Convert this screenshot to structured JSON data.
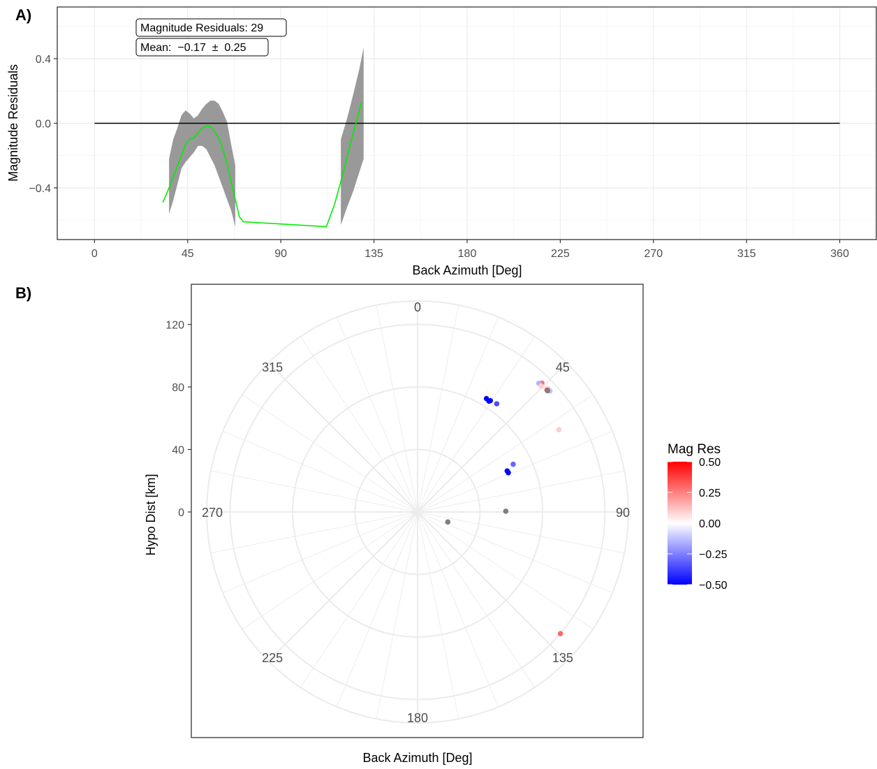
{
  "panel_a": {
    "tag": "A)",
    "annotation_count": "Magnitude Residuals: 29",
    "annotation_mean": "Mean:  −0.17  ±  0.25"
  },
  "panel_b": {
    "tag": "B)"
  },
  "colors": {
    "smooth_line": "#00ee00",
    "confidence_band": "#999999",
    "zero_line": "#000000",
    "grid_major": "#ebebeb",
    "grid_minor": "#f5f5f5",
    "na_point": "#7f7f7f",
    "scale_low": "#0000ff",
    "scale_mid": "#ffffff",
    "scale_high": "#ff0000"
  },
  "chart_data": [
    {
      "type": "line",
      "title": "",
      "xlabel": "Back Azimuth [Deg]",
      "ylabel": "Magnitude Residuals",
      "xlim": [
        -18,
        378
      ],
      "ylim": [
        -0.72,
        0.72
      ],
      "x_ticks": [
        0,
        45,
        90,
        135,
        180,
        225,
        270,
        315,
        360
      ],
      "x_tick_labels": [
        "0",
        "45",
        "90",
        "135",
        "180",
        "225",
        "270",
        "315",
        "360"
      ],
      "y_ticks": [
        -0.4,
        0.0,
        0.4
      ],
      "y_tick_labels": [
        "−0.4",
        "0.0",
        "0.4"
      ],
      "grid": true,
      "reference_line": {
        "y": 0,
        "x_from": 0,
        "x_to": 360
      },
      "series": [
        {
          "x": [
            33,
            36,
            39,
            42,
            44,
            46,
            48,
            50,
            52,
            54,
            56,
            58,
            60,
            62,
            64,
            66,
            68,
            70,
            72,
            112,
            116,
            119,
            122,
            125,
            129
          ],
          "y": [
            -0.49,
            -0.4,
            -0.3,
            -0.2,
            -0.13,
            -0.1,
            -0.09,
            -0.06,
            -0.03,
            -0.02,
            -0.02,
            -0.05,
            -0.09,
            -0.16,
            -0.25,
            -0.36,
            -0.47,
            -0.58,
            -0.61,
            -0.64,
            -0.5,
            -0.36,
            -0.21,
            -0.06,
            0.13
          ]
        }
      ],
      "bands": [
        {
          "x": [
            36,
            38,
            40,
            42,
            44,
            46,
            48,
            50,
            52,
            54,
            56,
            58,
            60,
            62,
            64,
            66,
            68
          ],
          "upper": [
            -0.22,
            -0.1,
            -0.03,
            0.05,
            0.08,
            0.06,
            0.03,
            0.05,
            0.09,
            0.12,
            0.14,
            0.14,
            0.12,
            0.07,
            0.01,
            -0.13,
            -0.26
          ],
          "lower": [
            -0.56,
            -0.48,
            -0.38,
            -0.28,
            -0.24,
            -0.21,
            -0.18,
            -0.14,
            -0.14,
            -0.16,
            -0.21,
            -0.26,
            -0.33,
            -0.4,
            -0.47,
            -0.54,
            -0.64
          ]
        },
        {
          "x": [
            119,
            122,
            125,
            128,
            130
          ],
          "upper": [
            -0.1,
            0.03,
            0.18,
            0.34,
            0.47
          ],
          "lower": [
            -0.63,
            -0.52,
            -0.42,
            -0.3,
            -0.22
          ]
        }
      ]
    },
    {
      "type": "scatter",
      "title": "",
      "xlabel": "Back Azimuth [Deg]",
      "ylabel": "Hypo Dist [km]",
      "coord": "polar",
      "theta_ticks": [
        0,
        45,
        90,
        135,
        180,
        225,
        270,
        315
      ],
      "theta_tick_labels": [
        "0",
        "45",
        "90",
        "135",
        "180",
        "225",
        "270",
        "315"
      ],
      "r_ticks": [
        0,
        40,
        80,
        120
      ],
      "r_tick_labels": [
        "0",
        "40",
        "80",
        "120"
      ],
      "r_max": 135,
      "grid": true,
      "color_scale": {
        "name": "Mag Res",
        "limits": [
          -0.5,
          0.5
        ],
        "breaks": [
          -0.5,
          -0.25,
          0.0,
          0.25,
          0.5
        ],
        "labels": [
          "−0.50",
          "−0.25",
          "0.00",
          "0.25",
          "0.50"
        ],
        "low": "#0000ff",
        "mid": "#ffffff",
        "high": "#ff0000"
      },
      "points": [
        {
          "theta": 44.0,
          "r": 114.6,
          "value": 0.28
        },
        {
          "theta": 43.3,
          "r": 113.2,
          "value": -0.15
        },
        {
          "theta": 44.5,
          "r": 113.0,
          "value": 0.1
        },
        {
          "theta": 46.3,
          "r": 114.6,
          "value": 0.35
        },
        {
          "theta": 46.1,
          "r": 114.5,
          "value": 0.05
        },
        {
          "theta": 47.6,
          "r": 114.8,
          "value": -0.12
        },
        {
          "theta": 46.8,
          "r": 113.8,
          "value": 0.45
        },
        {
          "theta": 47.0,
          "r": 113.8,
          "value": null
        },
        {
          "theta": 59.8,
          "r": 104.7,
          "value": 0.1
        },
        {
          "theta": 31.3,
          "r": 84.9,
          "value": -0.55
        },
        {
          "theta": 33.2,
          "r": 85.2,
          "value": -0.45
        },
        {
          "theta": 32.8,
          "r": 84.4,
          "value": -0.5
        },
        {
          "theta": 36.2,
          "r": 85.8,
          "value": -0.35
        },
        {
          "theta": 65.4,
          "r": 63.1,
          "value": -0.5
        },
        {
          "theta": 66.6,
          "r": 63.3,
          "value": -0.6
        },
        {
          "theta": 63.5,
          "r": 68.4,
          "value": -0.3
        },
        {
          "theta": 89.5,
          "r": 56.5,
          "value": null
        },
        {
          "theta": 108.3,
          "r": 20.4,
          "value": null
        },
        {
          "theta": 130.4,
          "r": 120.1,
          "value": 0.3
        }
      ]
    }
  ]
}
